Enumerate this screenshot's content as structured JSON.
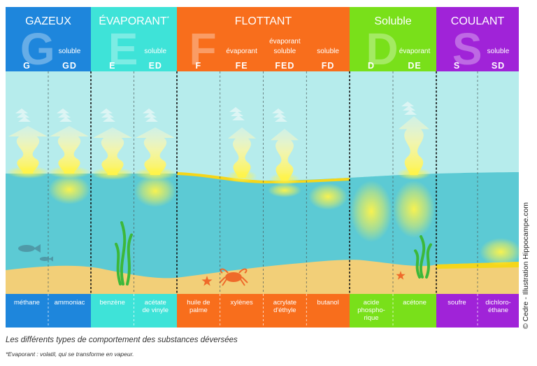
{
  "categories": [
    {
      "key": "gazeux",
      "title": "GAZEUX",
      "big_letter": "G",
      "color": "#1e86dc",
      "header_notes": [
        {
          "text": "soluble",
          "col": 1
        }
      ],
      "codes": [
        "G",
        "GD"
      ],
      "examples": [
        [
          "méthane"
        ],
        [
          "ammoniac"
        ]
      ]
    },
    {
      "key": "evaporant",
      "title": "ÉVAPORANT",
      "title_mark": "*",
      "big_letter": "E",
      "color": "#3ee3d8",
      "header_notes": [
        {
          "text": "soluble",
          "col": 1
        }
      ],
      "codes": [
        "E",
        "ED"
      ],
      "examples": [
        [
          "benzène"
        ],
        [
          "acétate",
          "de vinyle"
        ]
      ]
    },
    {
      "key": "flottant",
      "title": "FLOTTANT",
      "big_letter": "F",
      "color": "#f86e1c",
      "header_notes": [
        {
          "text": "évaporant",
          "col": 1
        },
        {
          "text": "évaporant",
          "col": 2,
          "line": 0
        },
        {
          "text": "soluble",
          "col": 2,
          "line": 1
        },
        {
          "text": "soluble",
          "col": 3
        }
      ],
      "codes": [
        "F",
        "FE",
        "FED",
        "FD"
      ],
      "examples": [
        [
          "huile de",
          "palme"
        ],
        [
          "xylènes"
        ],
        [
          "acrylate",
          "d'éthyle"
        ],
        [
          "butanol"
        ]
      ]
    },
    {
      "key": "soluble",
      "title": "Soluble",
      "big_letter": "D",
      "color": "#79e01a",
      "header_notes": [
        {
          "text": "évaporant",
          "col": 1
        }
      ],
      "codes": [
        "D",
        "DE"
      ],
      "examples": [
        [
          "acide",
          "phospho-",
          "rique"
        ],
        [
          "acétone"
        ]
      ]
    },
    {
      "key": "coulant",
      "title": "COULANT",
      "big_letter": "S",
      "color": "#a023d8",
      "header_notes": [
        {
          "text": "soluble",
          "col": 1
        }
      ],
      "codes": [
        "S",
        "SD"
      ],
      "examples": [
        [
          "soufre"
        ],
        [
          "dichloro-",
          "éthane"
        ]
      ]
    }
  ],
  "caption": "Les différents types de comportement des substances déversées",
  "footnote": "*Evaporant : volatil, qui se transforme en vapeur.",
  "credit": "© Cedre - Illustration Hippocampe.com",
  "colors": {
    "sky": "#b6ecec",
    "water": "#5ccad4",
    "sand": "#f2cf78",
    "yellow": "#fff44a",
    "slick": "#f5d61a",
    "seaweed": "#3cb83a",
    "crab": "#ef6a2a",
    "fish": "#4f9aa8"
  }
}
